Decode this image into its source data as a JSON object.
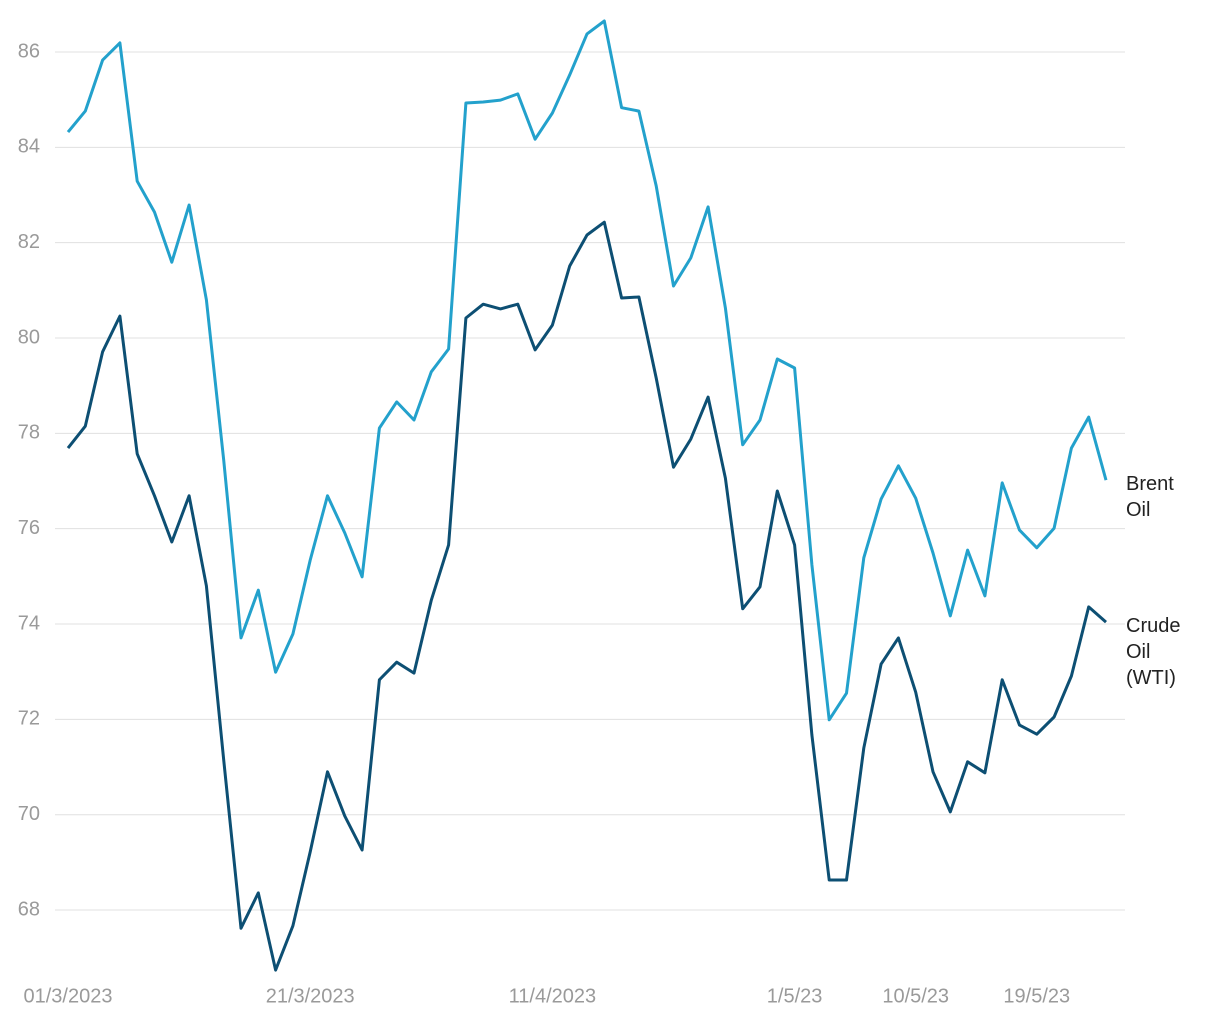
{
  "chart_data": {
    "type": "line",
    "categories": [
      "01/3/2023",
      null,
      null,
      null,
      null,
      null,
      null,
      null,
      null,
      null,
      null,
      null,
      null,
      null,
      "21/3/2023",
      null,
      null,
      null,
      null,
      null,
      null,
      null,
      null,
      null,
      null,
      null,
      null,
      null,
      "11/4/2023",
      null,
      null,
      null,
      null,
      null,
      null,
      null,
      null,
      null,
      null,
      null,
      null,
      null,
      "1/5/23",
      null,
      null,
      null,
      null,
      null,
      null,
      "10/5/23",
      null,
      null,
      null,
      null,
      null,
      null,
      "19/5/23",
      null,
      null,
      null,
      null
    ],
    "series": [
      {
        "name": "Brent Oil",
        "color": "#23a1cc",
        "values": [
          84.32,
          84.76,
          85.83,
          86.19,
          83.29,
          82.64,
          81.59,
          82.79,
          80.8,
          77.44,
          73.71,
          74.71,
          72.99,
          73.79,
          75.34,
          76.69,
          75.91,
          74.99,
          78.11,
          78.66,
          78.28,
          79.29,
          79.77,
          84.93,
          84.95,
          84.99,
          85.12,
          84.17,
          84.72,
          85.52,
          86.38,
          86.65,
          84.83,
          84.76,
          83.19,
          81.09,
          81.68,
          82.75,
          80.63,
          77.76,
          78.28,
          79.56,
          79.37,
          75.24,
          71.99,
          72.55,
          75.39,
          76.62,
          77.32,
          76.64,
          75.49,
          74.17,
          75.55,
          74.59,
          76.96,
          75.97,
          75.6,
          76.01,
          77.69,
          78.34,
          77.02
        ]
      },
      {
        "name": "Crude Oil (WTI)",
        "color": "#0d4f73",
        "values": [
          77.69,
          78.15,
          79.71,
          80.46,
          77.57,
          76.69,
          75.72,
          76.69,
          74.8,
          71.15,
          67.62,
          68.36,
          66.74,
          67.67,
          69.22,
          70.9,
          69.97,
          69.26,
          72.83,
          73.2,
          72.97,
          74.5,
          75.66,
          80.42,
          80.71,
          80.61,
          80.71,
          79.75,
          80.27,
          81.51,
          82.16,
          82.43,
          80.84,
          80.86,
          79.16,
          77.29,
          77.88,
          78.76,
          77.06,
          74.32,
          74.78,
          76.79,
          75.66,
          71.67,
          68.63,
          68.63,
          71.4,
          73.16,
          73.71,
          72.57,
          70.9,
          70.06,
          71.11,
          70.88,
          72.83,
          71.88,
          71.69,
          72.05,
          72.91,
          74.36,
          74.04
        ]
      }
    ],
    "ylim": [
      66.6,
      86.7
    ],
    "yticks": [
      68,
      70,
      72,
      74,
      76,
      78,
      80,
      82,
      84,
      86
    ],
    "grid": true
  }
}
